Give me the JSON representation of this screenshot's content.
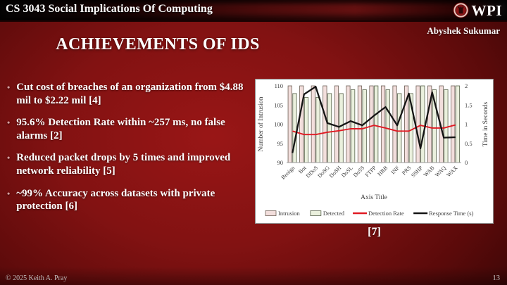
{
  "header": {
    "course_title": "CS 3043 Social Implications Of Computing",
    "logo_text": "WPI",
    "author": "Abyshek Sukumar"
  },
  "slide": {
    "title": "ACHIEVEMENTS OF IDS",
    "bullet_char": "•",
    "bullets": [
      "Cut cost of breaches of an organization from $4.88 mil to $2.22 mil [4]",
      "95.6% Detection Rate within ~257 ms, no false alarms [2]",
      "Reduced packet drops by 5 times and improved network reliability [5]",
      "~99% Accuracy across datasets with private protection [6]"
    ],
    "chart_caption": "[7]"
  },
  "footer": {
    "copyright": "© 2025 Keith A. Pray",
    "page_number": "13"
  },
  "colors": {
    "background_accent": "#8f1414",
    "chart_bg": "#ffffff",
    "chart_text": "#3c3c3c",
    "axis_line": "#9a9a9a"
  },
  "chart_data": {
    "type": "bar",
    "subtype": "combo-bar-line",
    "title": "",
    "xlabel": "Axis Title",
    "categories": [
      "Benign",
      "Bot",
      "DDoS",
      "DoSG",
      "DoSH",
      "DoSL",
      "DoSS",
      "FTPP",
      "HRB",
      "INF",
      "PRS",
      "SSHP",
      "WAB",
      "WAQ",
      "WAX"
    ],
    "left_axis": {
      "label": "Number of Intrusion",
      "range": [
        90,
        110
      ],
      "ticks": [
        90,
        95,
        100,
        105,
        110
      ]
    },
    "right_axis": {
      "label": "Time in Seconds",
      "range": [
        0,
        2
      ],
      "ticks": [
        0,
        0.5,
        1,
        1.5,
        2
      ]
    },
    "grid": false,
    "legend_position": "bottom",
    "series": [
      {
        "name": "Intrusion",
        "type": "bar",
        "axis": "left",
        "fill": "#f2dedc",
        "stroke": "#6e6057",
        "values": [
          110,
          110,
          110,
          110,
          110,
          110,
          110,
          110,
          110,
          110,
          110,
          110,
          110,
          110,
          110
        ]
      },
      {
        "name": "Detected",
        "type": "bar",
        "axis": "left",
        "fill": "#eaf0dd",
        "stroke": "#57614b",
        "values": [
          108,
          107,
          107,
          108,
          108,
          109,
          109,
          110,
          109,
          108,
          108,
          110,
          109,
          109,
          110
        ]
      },
      {
        "name": "Detection Rate",
        "type": "line",
        "axis": "right",
        "color": "#e01b24",
        "values": [
          0.82,
          0.73,
          0.73,
          0.79,
          0.83,
          0.88,
          0.88,
          0.97,
          0.9,
          0.82,
          0.82,
          0.97,
          0.9,
          0.9,
          0.98
        ]
      },
      {
        "name": "Response Time (s)",
        "type": "line",
        "axis": "right",
        "color": "#141414",
        "values": [
          0.25,
          1.78,
          1.98,
          1.03,
          0.93,
          1.08,
          0.97,
          1.22,
          1.45,
          0.97,
          1.8,
          0.37,
          1.83,
          0.65,
          0.66
        ]
      }
    ]
  }
}
